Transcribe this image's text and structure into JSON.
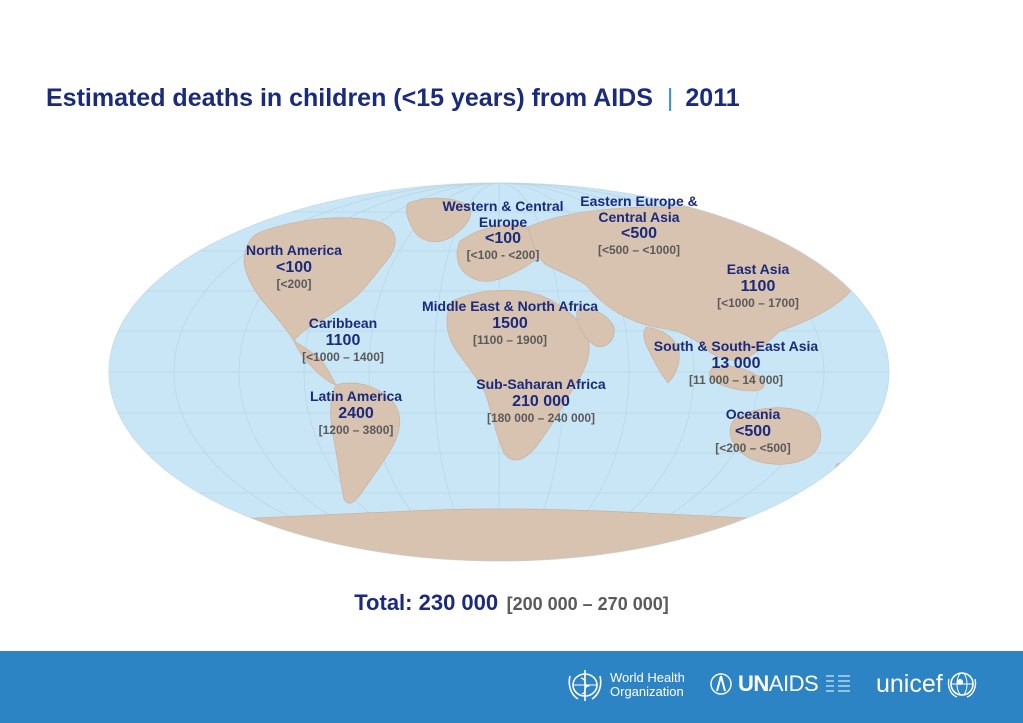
{
  "title": {
    "main": "Estimated deaths in children (<15 years) from AIDS",
    "separator": "|",
    "year": "2011"
  },
  "regions": [
    {
      "name": "North America",
      "value": "<100",
      "range": "[<200]"
    },
    {
      "name": "Western & Central Europe",
      "value": "<100",
      "range": "[<100 - <200]"
    },
    {
      "name": "Eastern Europe & Central Asia",
      "value": "<500",
      "range": "[<500 – <1000]"
    },
    {
      "name": "East Asia",
      "value": "1100",
      "range": "[<1000 – 1700]"
    },
    {
      "name": "Caribbean",
      "value": "1100",
      "range": "[<1000 – 1400]"
    },
    {
      "name": "Middle East & North Africa",
      "value": "1500",
      "range": "[1100 – 1900]"
    },
    {
      "name": "South & South-East Asia",
      "value": "13 000",
      "range": "[11 000 – 14 000]"
    },
    {
      "name": "Latin America",
      "value": "2400",
      "range": "[1200 – 3800]"
    },
    {
      "name": "Sub-Saharan Africa",
      "value": "210 000",
      "range": "[180 000 – 240 000]"
    },
    {
      "name": "Oceania",
      "value": "<500",
      "range": "[<200 – <500]"
    }
  ],
  "total": {
    "label": "Total: 230 000",
    "range": "[200 000 – 270 000]"
  },
  "footer": {
    "who_line1": "World Health",
    "who_line2": "Organization",
    "unaids_un": "UN",
    "unaids_aids": "AIDS",
    "unicef": "unicef"
  },
  "colors": {
    "ocean": "#c9e6f6",
    "land": "#d8c2b0",
    "accent": "#1a2a7c",
    "footer": "#2d84c4"
  }
}
